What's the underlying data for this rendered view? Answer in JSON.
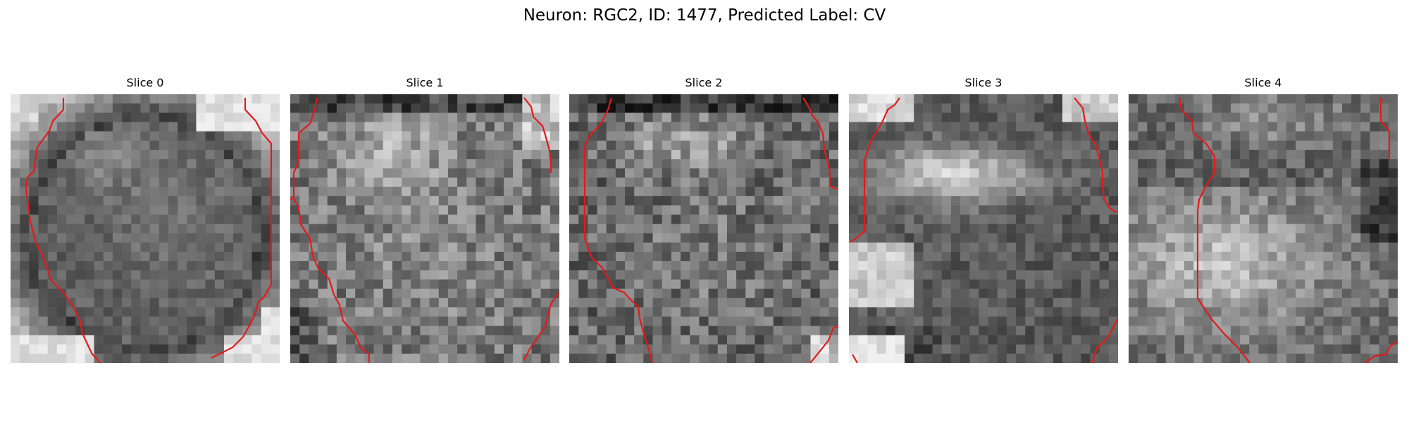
{
  "figure": {
    "title": "Neuron: RGC2, ID: 1477, Predicted Label: CV"
  },
  "panels": [
    {
      "title": "Slice 0",
      "contour_color": "#e31a1c"
    },
    {
      "title": "Slice 1",
      "contour_color": "#e31a1c"
    },
    {
      "title": "Slice 2",
      "contour_color": "#e31a1c"
    },
    {
      "title": "Slice 3",
      "contour_color": "#e31a1c"
    },
    {
      "title": "Slice 4",
      "contour_color": "#e31a1c"
    }
  ]
}
